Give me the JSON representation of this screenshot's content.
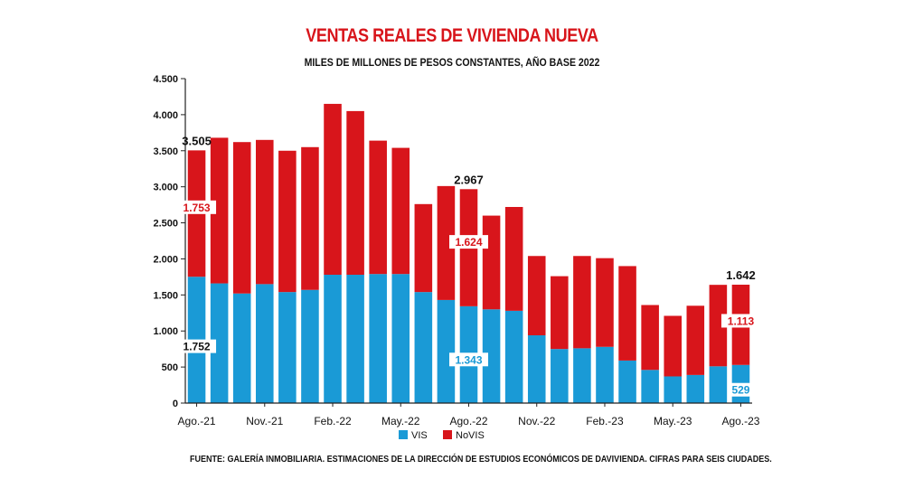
{
  "chart_data": {
    "type": "bar",
    "stacked": true,
    "title": "VENTAS REALES DE VIVIENDA NUEVA",
    "subtitle": "MILES DE MILLONES DE PESOS CONSTANTES, AÑO BASE 2022",
    "source": "FUENTE: GALERÍA INMOBILIARIA. ESTIMACIONES DE LA DIRECCIÓN DE ESTUDIOS ECONÓMICOS DE DAVIVIENDA. CIFRAS PARA SEIS CIUDADES.",
    "ylim": [
      0,
      4500
    ],
    "yticks": [
      0,
      500,
      1000,
      1500,
      2000,
      2500,
      3000,
      3500,
      4000,
      4500
    ],
    "ytick_labels": [
      "0",
      "500",
      "1.000",
      "1.500",
      "2.000",
      "2.500",
      "3.000",
      "3.500",
      "4.000",
      "4.500"
    ],
    "categories": [
      "Ago.-21",
      "Sep.-21",
      "Oct.-21",
      "Nov.-21",
      "Dic.-21",
      "Ene.-22",
      "Feb.-22",
      "Mar.-22",
      "Abr.-22",
      "May.-22",
      "Jun.-22",
      "Jul.-22",
      "Ago.-22",
      "Sep.-22",
      "Oct.-22",
      "Nov.-22",
      "Dic.-22",
      "Ene.-23",
      "Feb.-23",
      "Mar.-23",
      "Abr.-23",
      "May.-23",
      "Jun.-23",
      "Jul.-23",
      "Ago.-23"
    ],
    "xtick_labels": [
      {
        "index": 0,
        "label": "Ago.-21"
      },
      {
        "index": 3,
        "label": "Nov.-21"
      },
      {
        "index": 6,
        "label": "Feb.-22"
      },
      {
        "index": 9,
        "label": "May.-22"
      },
      {
        "index": 12,
        "label": "Ago.-22"
      },
      {
        "index": 15,
        "label": "Nov.-22"
      },
      {
        "index": 18,
        "label": "Feb.-23"
      },
      {
        "index": 21,
        "label": "May.-23"
      },
      {
        "index": 24,
        "label": "Ago.-23"
      }
    ],
    "series": [
      {
        "name": "VIS",
        "color": "#1a9ad6",
        "values": [
          1752,
          1660,
          1520,
          1650,
          1540,
          1570,
          1780,
          1780,
          1790,
          1790,
          1540,
          1430,
          1343,
          1300,
          1280,
          940,
          750,
          760,
          780,
          590,
          460,
          370,
          390,
          510,
          529
        ]
      },
      {
        "name": "NoVIS",
        "color": "#d8151b",
        "values": [
          1753,
          2020,
          2100,
          2000,
          1960,
          1980,
          2370,
          2270,
          1850,
          1750,
          1220,
          1580,
          1624,
          1300,
          1440,
          1100,
          1010,
          1280,
          1230,
          1310,
          900,
          840,
          960,
          1130,
          1113
        ]
      }
    ],
    "totals": [
      {
        "index": 0,
        "label": "3.505"
      },
      {
        "index": 12,
        "label": "2.967"
      },
      {
        "index": 24,
        "label": "1.642"
      }
    ],
    "segment_labels": [
      {
        "index": 0,
        "series": "VIS",
        "label": "1.752"
      },
      {
        "index": 0,
        "series": "NoVIS",
        "label": "1.753"
      },
      {
        "index": 12,
        "series": "VIS",
        "label": "1.343"
      },
      {
        "index": 12,
        "series": "NoVIS",
        "label": "1.624"
      },
      {
        "index": 24,
        "series": "VIS",
        "label": "529"
      },
      {
        "index": 24,
        "series": "NoVIS",
        "label": "1.113"
      }
    ],
    "legend": [
      {
        "name": "VIS",
        "color": "#1a9ad6"
      },
      {
        "name": "NoVIS",
        "color": "#d8151b"
      }
    ],
    "legend_position": "bottom-center"
  }
}
